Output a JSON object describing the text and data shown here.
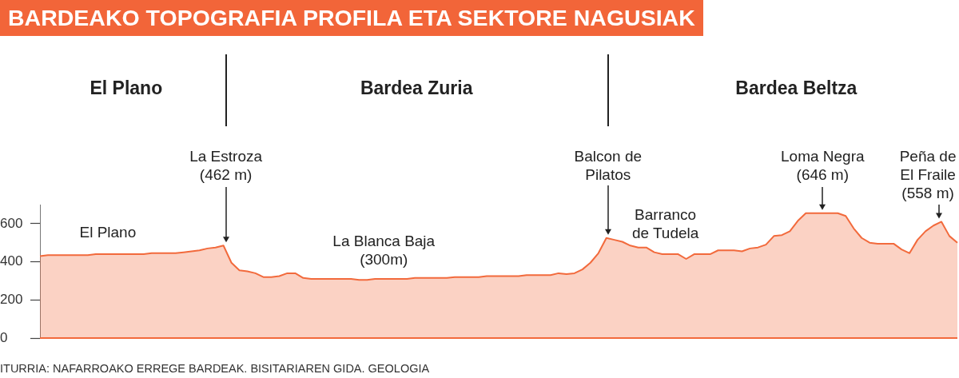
{
  "chart_data": {
    "type": "area",
    "title": "BARDEAKO TOPOGRAFIA PROFILA ETA SEKTORE NAGUSIAK",
    "color": "#f26a3c",
    "categories": [
      null,
      null,
      null,
      null,
      null,
      null,
      null,
      null,
      null,
      null,
      null,
      null,
      null,
      null,
      null,
      null,
      null,
      null,
      null,
      null,
      null,
      null,
      null,
      null,
      null,
      null,
      null,
      null,
      null,
      null,
      null,
      null,
      null,
      null,
      null,
      null,
      null,
      null,
      null,
      null,
      null,
      null,
      null,
      null,
      null,
      null,
      null,
      null,
      null,
      null,
      null,
      null,
      null,
      null,
      null,
      null,
      null,
      null,
      null,
      null,
      null,
      null,
      null,
      null,
      null,
      null,
      null,
      null,
      null,
      null,
      null,
      null,
      null,
      null,
      null,
      null,
      null,
      null,
      null,
      null,
      null,
      null,
      null,
      null,
      null,
      null,
      null,
      null,
      null,
      null,
      null,
      null,
      null,
      null,
      null,
      null,
      null,
      null,
      null,
      null,
      null,
      null,
      null,
      null,
      null,
      null,
      null,
      null,
      null,
      null,
      null,
      null,
      null,
      null,
      null,
      null
    ],
    "values": [
      430,
      435,
      435,
      435,
      435,
      435,
      435,
      440,
      440,
      440,
      440,
      440,
      440,
      440,
      445,
      445,
      445,
      445,
      450,
      455,
      460,
      470,
      475,
      485,
      395,
      355,
      350,
      340,
      320,
      320,
      325,
      340,
      340,
      315,
      310,
      310,
      310,
      310,
      310,
      310,
      305,
      305,
      310,
      310,
      310,
      310,
      310,
      315,
      315,
      315,
      315,
      315,
      320,
      320,
      320,
      320,
      325,
      325,
      325,
      325,
      325,
      330,
      330,
      330,
      330,
      340,
      335,
      340,
      360,
      395,
      445,
      525,
      515,
      505,
      485,
      475,
      475,
      450,
      440,
      440,
      440,
      415,
      440,
      440,
      440,
      460,
      460,
      460,
      455,
      470,
      475,
      490,
      535,
      540,
      560,
      615,
      655,
      655,
      655,
      655,
      655,
      640,
      575,
      525,
      500,
      495,
      495,
      495,
      465,
      445,
      515,
      560,
      590,
      610,
      535,
      500
    ],
    "ylim": [
      0,
      700
    ],
    "yticks": [
      0,
      200,
      400,
      600
    ],
    "tick_labels": "y",
    "annotations": [
      "El Plano",
      "Bardea Zuria",
      "Bardea Beltza",
      "La Estroza\n(462 m)",
      "El Plano",
      "La Blanca Baja\n(300m)",
      "Balcon de\nPilatos",
      "Barranco\nde Tudela",
      "Loma Negra\n(646 m)",
      "Peña de\nEl Fraile\n(558 m)",
      "ITURRIA: NAFARROAKO ERREGE BARDEAK. BISITARIAREN GIDA. GEOLOGIA"
    ]
  }
}
